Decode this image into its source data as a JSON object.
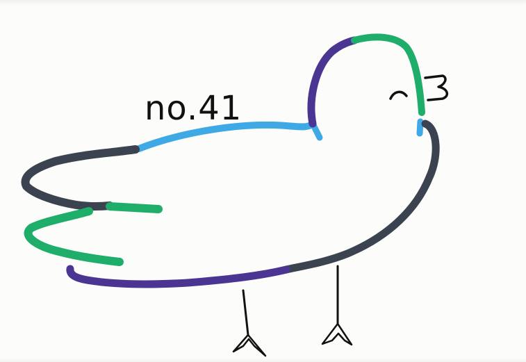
{
  "drawing": {
    "label": "no.41",
    "colors": {
      "paper": "#fcfcfa",
      "blue": "#3fa9e6",
      "green": "#1fae6a",
      "purple": "#4b3592",
      "charcoal": "#3c4350",
      "ink": "#111111"
    }
  }
}
